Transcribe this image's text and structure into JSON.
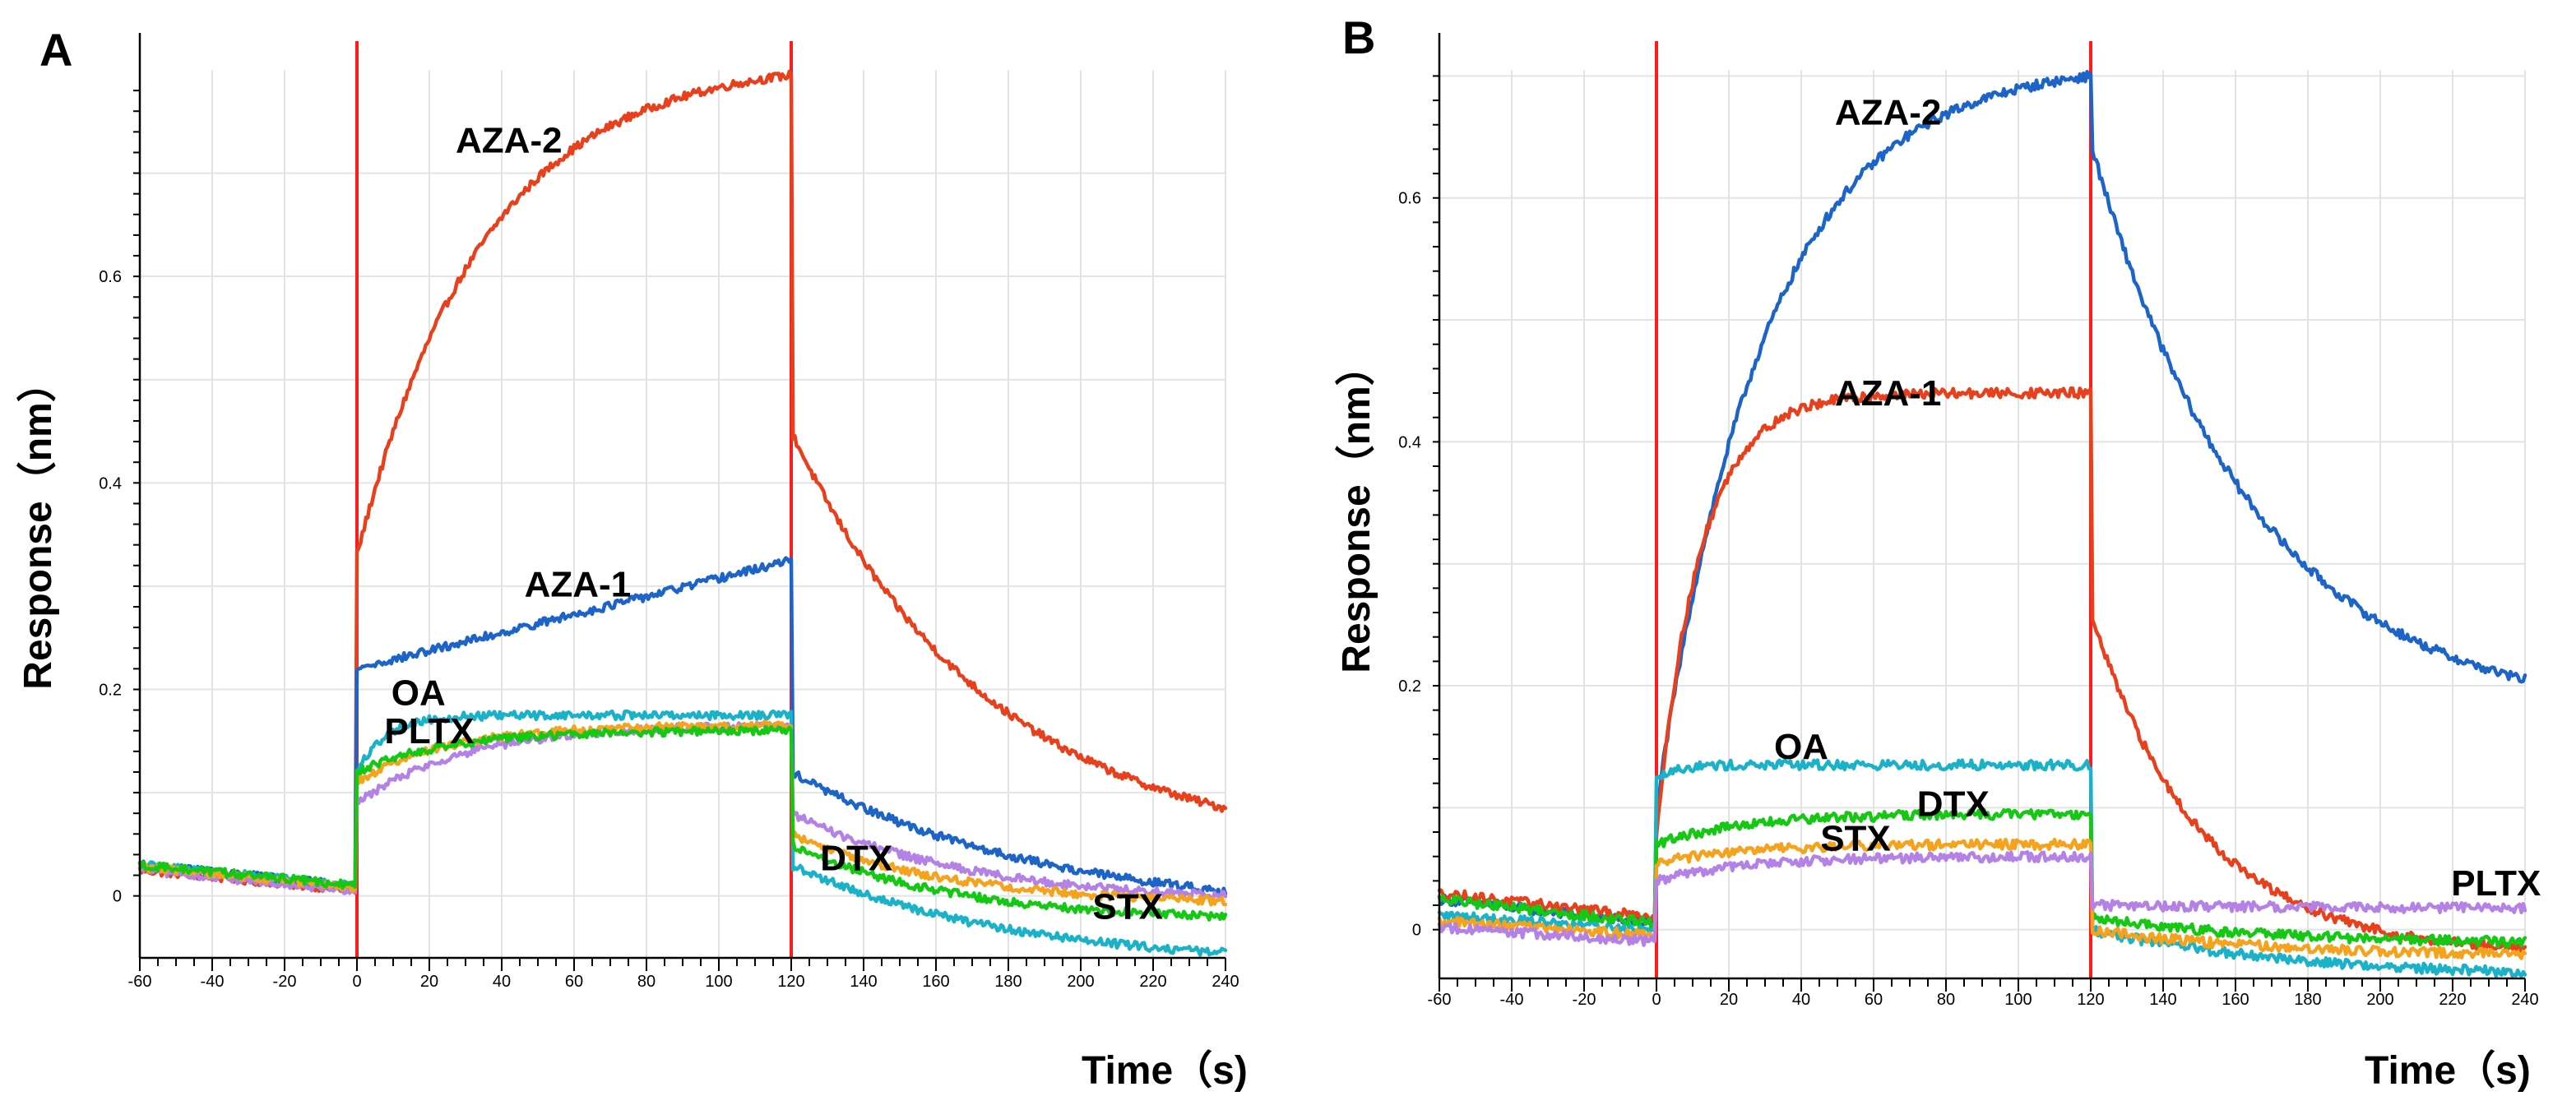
{
  "colors": {
    "red": "#e8401c",
    "blue": "#1c64c8",
    "cyan": "#1ab2c8",
    "green": "#14c814",
    "orange": "#f5a21c",
    "purple": "#b482e6",
    "marker": "#ff1a1a"
  },
  "chart_data": [
    {
      "type": "line",
      "panel": "A",
      "xlabel": "Time（s)",
      "ylabel": "Response（nm）",
      "xlim": [
        -60,
        240
      ],
      "ylim": [
        -0.06,
        0.8
      ],
      "xticks": [
        -60,
        -40,
        -20,
        0,
        20,
        40,
        60,
        80,
        100,
        120,
        140,
        160,
        180,
        200,
        220,
        240
      ],
      "yticks": [
        0,
        0.2,
        0.4,
        0.6
      ],
      "ytick_labels": [
        "0",
        "0.2",
        "0.4",
        "0.6"
      ],
      "vlines": [
        0,
        120
      ],
      "grid": true,
      "series": [
        {
          "name": "AZA-2",
          "color": "red",
          "baseline": 0.005,
          "assoc_start": 0.33,
          "assoc_end": 0.795,
          "assoc_tau": 35,
          "dissoc_start": 0.45,
          "dissoc_end": 0.085,
          "dissoc_tau": 55
        },
        {
          "name": "AZA-1",
          "color": "blue",
          "baseline": 0.01,
          "assoc_start": 0.22,
          "assoc_end": 0.325,
          "assoc_tau": 0,
          "dissoc_start": 0.12,
          "dissoc_end": 0.005,
          "dissoc_tau": 70
        },
        {
          "name": "OA",
          "color": "cyan",
          "baseline": 0.01,
          "assoc_start": 0.12,
          "assoc_end": 0.175,
          "assoc_tau": 8,
          "dissoc_start": 0.03,
          "dissoc_end": -0.055,
          "dissoc_tau": 60
        },
        {
          "name": "PLTX",
          "color": "purple",
          "baseline": 0.005,
          "assoc_start": 0.09,
          "assoc_end": 0.165,
          "assoc_tau": 30,
          "dissoc_start": 0.08,
          "dissoc_end": 0.0,
          "dissoc_tau": 50
        },
        {
          "name": "DTX",
          "color": "orange",
          "baseline": 0.008,
          "assoc_start": 0.11,
          "assoc_end": 0.165,
          "assoc_tau": 25,
          "dissoc_start": 0.06,
          "dissoc_end": -0.005,
          "dissoc_tau": 45
        },
        {
          "name": "STX",
          "color": "green",
          "baseline": 0.01,
          "assoc_start": 0.12,
          "assoc_end": 0.16,
          "assoc_tau": 25,
          "dissoc_start": 0.05,
          "dissoc_end": -0.02,
          "dissoc_tau": 45
        }
      ],
      "annotations": [
        {
          "text": "AZA-2",
          "x": 42,
          "y": 0.72
        },
        {
          "text": "AZA-1",
          "x": 61,
          "y": 0.29
        },
        {
          "text": "OA",
          "x": 17,
          "y": 0.185
        },
        {
          "text": "PLTX",
          "x": 20,
          "y": 0.148
        },
        {
          "text": "DTX",
          "x": 138,
          "y": 0.025
        },
        {
          "text": "STX",
          "x": 213,
          "y": -0.022
        }
      ]
    },
    {
      "type": "line",
      "panel": "B",
      "xlabel": "Time（s)",
      "ylabel": "Response（nm）",
      "xlim": [
        -60,
        240
      ],
      "ylim": [
        -0.04,
        0.705
      ],
      "xticks": [
        -60,
        -40,
        -20,
        0,
        20,
        40,
        60,
        80,
        100,
        120,
        140,
        160,
        180,
        200,
        220,
        240
      ],
      "yticks": [
        0,
        0.2,
        0.4,
        0.6
      ],
      "ytick_labels": [
        "0",
        "0.2",
        "0.4",
        "0.6"
      ],
      "vlines": [
        0,
        120
      ],
      "grid": true,
      "series": [
        {
          "name": "AZA-2",
          "color": "blue",
          "baseline": 0.005,
          "assoc_start": 0.1,
          "assoc_end": 0.7,
          "assoc_tau": 30,
          "dissoc_start": 0.645,
          "dissoc_end": 0.205,
          "dissoc_tau": 45
        },
        {
          "name": "AZA-1",
          "color": "red",
          "baseline": 0.01,
          "assoc_start": 0.08,
          "assoc_end": 0.44,
          "assoc_tau": 12,
          "dissoc_start": 0.26,
          "dissoc_end": -0.015,
          "dissoc_tau": 30
        },
        {
          "name": "OA",
          "color": "cyan",
          "baseline": 0.0,
          "assoc_start": 0.125,
          "assoc_end": 0.135,
          "assoc_tau": 5,
          "dissoc_start": 0.0,
          "dissoc_end": -0.035,
          "dissoc_tau": 60
        },
        {
          "name": "DTX",
          "color": "green",
          "baseline": 0.005,
          "assoc_start": 0.07,
          "assoc_end": 0.095,
          "assoc_tau": 25,
          "dissoc_start": 0.01,
          "dissoc_end": -0.01,
          "dissoc_tau": 50
        },
        {
          "name": "STX",
          "color": "orange",
          "baseline": -0.005,
          "assoc_start": 0.055,
          "assoc_end": 0.07,
          "assoc_tau": 25,
          "dissoc_start": 0.0,
          "dissoc_end": -0.02,
          "dissoc_tau": 50
        },
        {
          "name": "PLTX",
          "color": "purple",
          "baseline": -0.01,
          "assoc_start": 0.04,
          "assoc_end": 0.06,
          "assoc_tau": 25,
          "dissoc_start": 0.02,
          "dissoc_end": 0.018,
          "dissoc_tau": 50
        }
      ],
      "annotations": [
        {
          "text": "AZA-2",
          "x": 64,
          "y": 0.66
        },
        {
          "text": "AZA-1",
          "x": 64,
          "y": 0.43
        },
        {
          "text": "OA",
          "x": 40,
          "y": 0.14
        },
        {
          "text": "DTX",
          "x": 82,
          "y": 0.093
        },
        {
          "text": "STX",
          "x": 55,
          "y": 0.065
        },
        {
          "text": "PLTX",
          "x": 232,
          "y": 0.028
        }
      ]
    }
  ]
}
